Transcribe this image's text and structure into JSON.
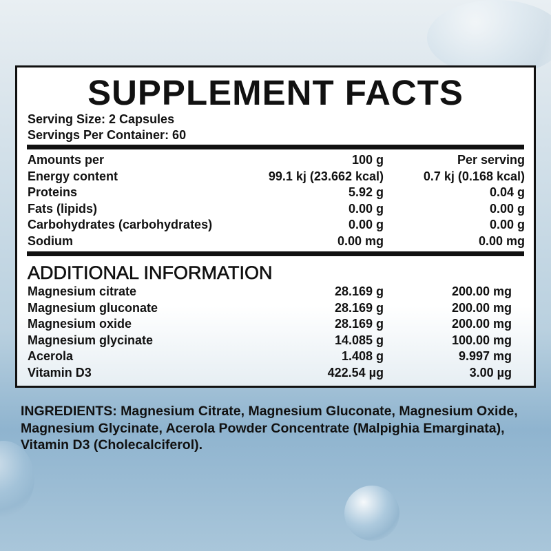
{
  "panel": {
    "title": "SUPPLEMENT FACTS",
    "serving_size": "Serving Size: 2 Capsules",
    "servings_per_container": "Servings Per Container: 60"
  },
  "nutrition": {
    "header": [
      "Amounts per",
      "100 g",
      "Per serving"
    ],
    "rows": [
      [
        "Energy content",
        "99.1 kj (23.662 kcal)",
        "0.7 kj (0.168 kcal)"
      ],
      [
        "Proteins",
        "5.92 g",
        "0.04 g"
      ],
      [
        "Fats (lipids)",
        "0.00 g",
        "0.00 g"
      ],
      [
        "Carbohydrates (carbohydrates)",
        "0.00 g",
        "0.00 g"
      ],
      [
        "Sodium",
        "0.00 mg",
        "0.00 mg"
      ]
    ]
  },
  "additional": {
    "heading": "ADDITIONAL INFORMATION",
    "rows": [
      [
        "Magnesium citrate",
        "28.169 g",
        "200.00 mg"
      ],
      [
        "Magnesium gluconate",
        "28.169 g",
        "200.00 mg"
      ],
      [
        "Magnesium oxide",
        "28.169 g",
        "200.00 mg"
      ],
      [
        "Magnesium glycinate",
        "14.085 g",
        "100.00 mg"
      ],
      [
        "Acerola",
        "1.408 g",
        "9.997 mg"
      ],
      [
        "Vitamin D3",
        "422.54 µg",
        "3.00  µg"
      ]
    ]
  },
  "ingredients": {
    "label": "INGREDIENTS:",
    "text": " Magnesium Citrate, Magnesium Gluconate, Magnesium Oxide, Magnesium Glycinate, Acerola Powder Concentrate (Malpighia Emarginata), Vitamin D3 (Cholecalciferol)."
  }
}
